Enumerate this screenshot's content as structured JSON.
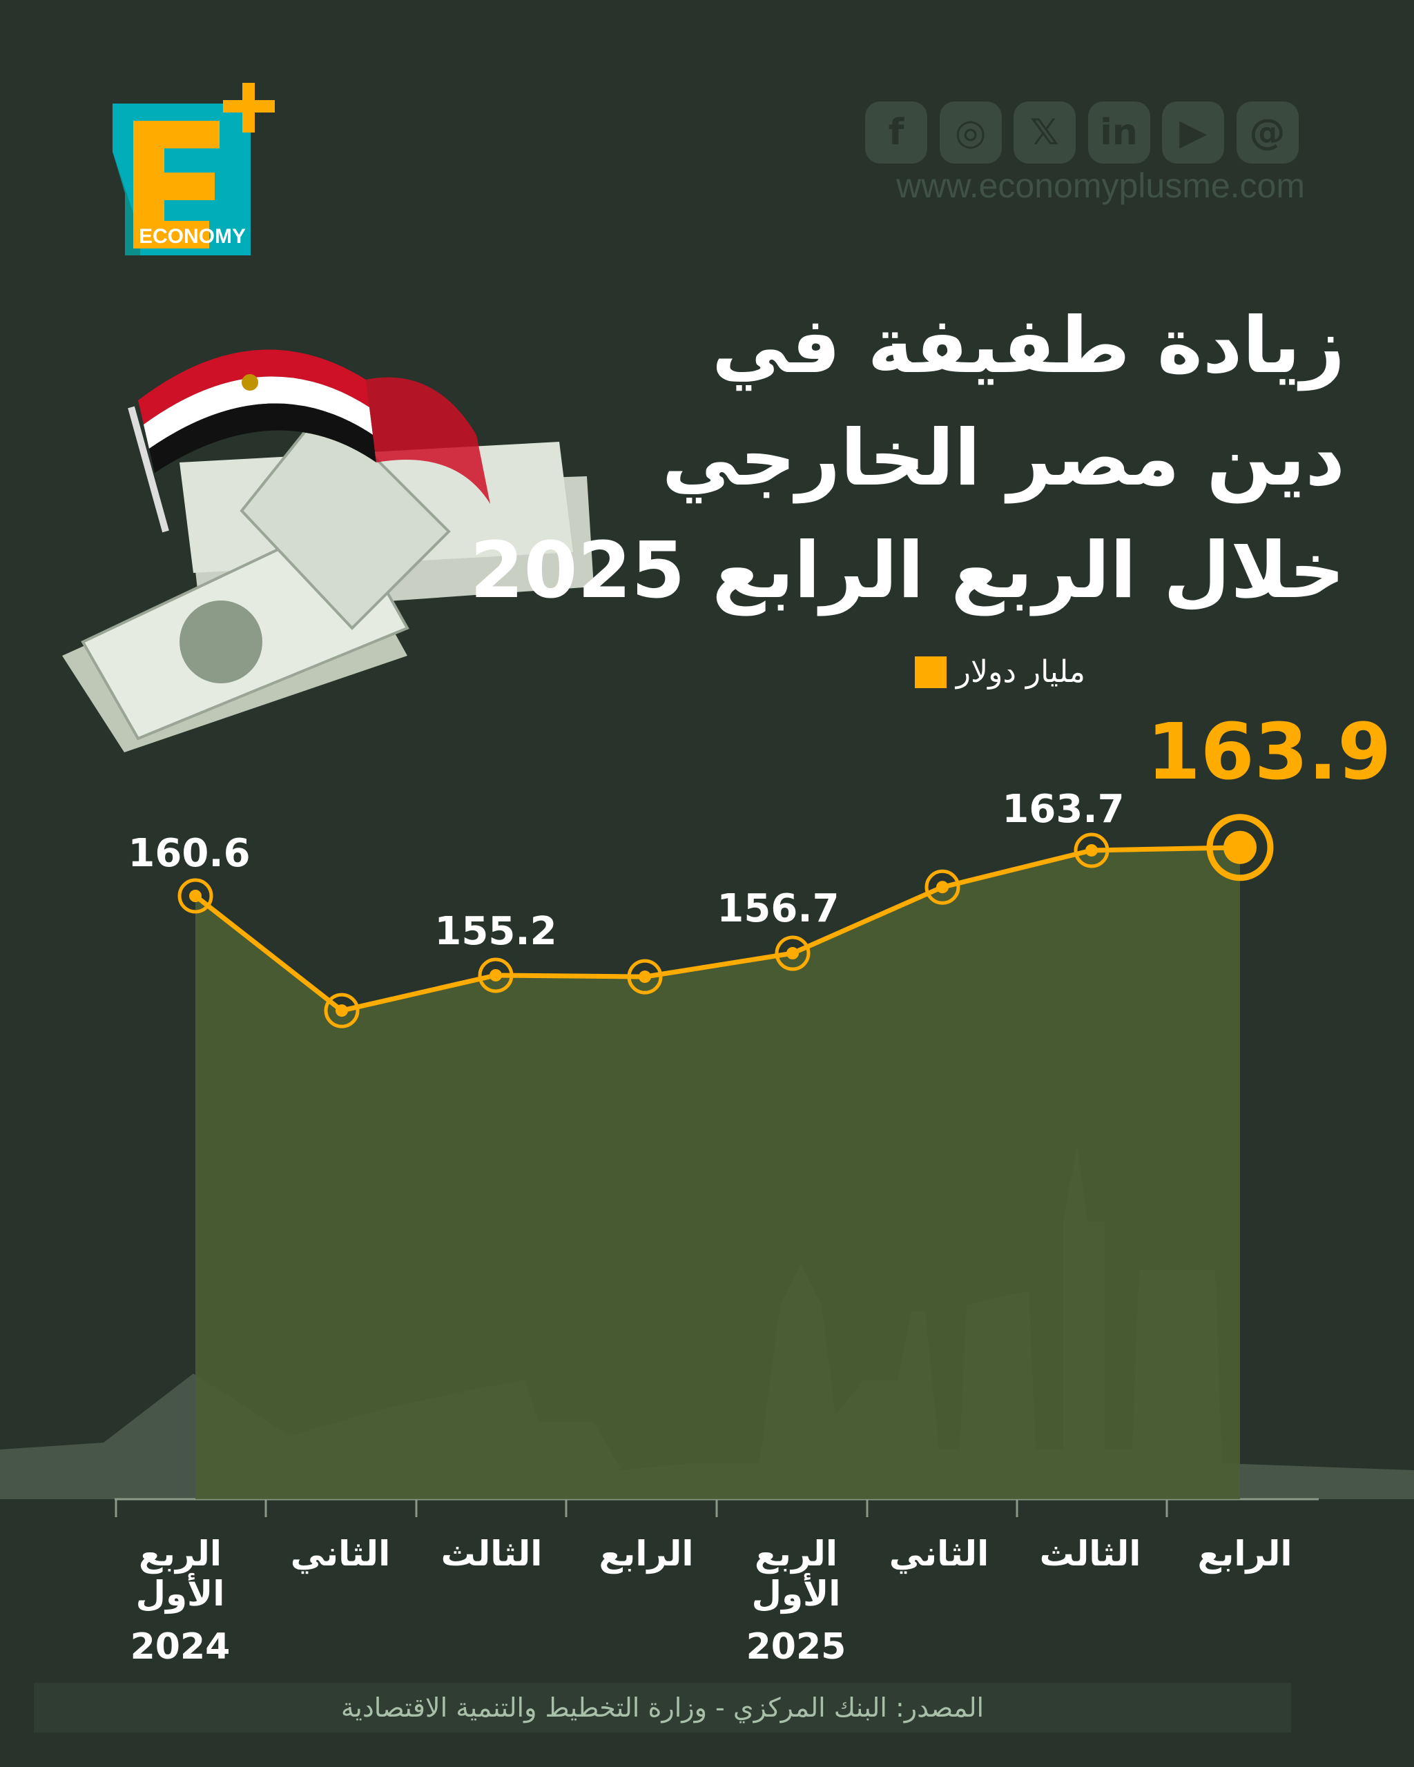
{
  "brand": {
    "logo_text": "ECONOMY",
    "url": "www.economyplusme.com",
    "accent": "#ffab00",
    "logo_teal": "#00adb8"
  },
  "social": [
    {
      "icon": "facebook-icon",
      "glyph": "f"
    },
    {
      "icon": "instagram-icon",
      "glyph": "◎"
    },
    {
      "icon": "x-icon",
      "glyph": "𝕏"
    },
    {
      "icon": "linkedin-icon",
      "glyph": "in"
    },
    {
      "icon": "youtube-icon",
      "glyph": "▶"
    },
    {
      "icon": "threads-icon",
      "glyph": "@"
    }
  ],
  "title": {
    "line1": "زيادة طفيفة في",
    "line2": "دين مصر الخارجي",
    "line3": "خلال الربع الرابع 2025"
  },
  "legend": {
    "label": "مليار دولار",
    "color": "#ffab00"
  },
  "chart_data": {
    "type": "line",
    "categories": [
      "الربع الأول",
      "الثاني",
      "الثالث",
      "الرابع",
      "الربع الأول",
      "الثاني",
      "الثالث",
      "الرابع"
    ],
    "year_labels": [
      {
        "index": 0,
        "label": "2024"
      },
      {
        "index": 4,
        "label": "2025"
      }
    ],
    "values": [
      160.6,
      152.8,
      155.2,
      155.1,
      156.7,
      161.2,
      163.7,
      163.9
    ],
    "data_labels": [
      {
        "index": 0,
        "label": "160.6"
      },
      {
        "index": 2,
        "label": "155.2"
      },
      {
        "index": 4,
        "label": "156.7"
      },
      {
        "index": 6,
        "label": "163.7"
      },
      {
        "index": 7,
        "label": "163.9"
      }
    ],
    "unit": "مليار دولار",
    "ylim": [
      119.6,
      170
    ],
    "line_color": "#ffab00",
    "area_color": "#4b5e33",
    "grid": false
  },
  "source": "المصدر: البنك المركزي - وزارة التخطيط والتنمية الاقتصادية"
}
